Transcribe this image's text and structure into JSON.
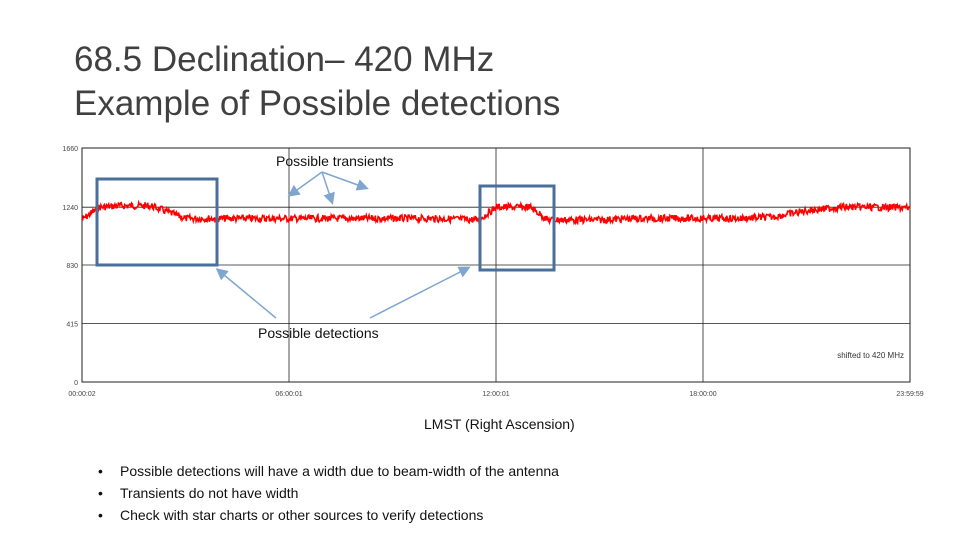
{
  "slide": {
    "title_line1": "68.5 Declination– 420 MHz",
    "title_line2": "Example of Possible detections",
    "callout_transients": "Possible transients",
    "callout_detections": "Possible detections",
    "x_caption": "LMST (Right Ascension)",
    "bullets": [
      "Possible detections will have a width due to beam-width of the antenna",
      "Transients do not have width",
      "Check with star charts or other sources to verify detections"
    ],
    "colors": {
      "trace": "#ff0000",
      "box": "#4a6f9a",
      "arrow": "#7fa6cf",
      "grid": "#222222"
    }
  },
  "chart_data": {
    "type": "line",
    "series": [
      {
        "x": [
          "00:00:02",
          "00:30:00",
          "00:50:00",
          "01:00:00",
          "02:00:00",
          "03:00:00",
          "04:00:00",
          "05:00:00",
          "06:00:00",
          "07:00:00",
          "08:00:00",
          "09:00:00",
          "10:00:00",
          "11:00:00",
          "11:30:00",
          "12:00:00",
          "13:00:00",
          "13:30:00",
          "14:00:00",
          "15:00:00",
          "16:00:00",
          "17:00:00",
          "18:00:00",
          "19:00:00",
          "20:00:00",
          "21:00:00",
          "22:00:00",
          "23:00:00",
          "23:59:59"
        ],
        "values": [
          1150,
          1240,
          1245,
          1250,
          1250,
          1160,
          1160,
          1160,
          1160,
          1160,
          1160,
          1160,
          1160,
          1155,
          1150,
          1240,
          1240,
          1150,
          1150,
          1150,
          1160,
          1160,
          1160,
          1160,
          1170,
          1215,
          1240,
          1240,
          1235
        ]
      }
    ],
    "x_ticks": [
      "00:00:02",
      "06:00:01",
      "12:00:01",
      "18:00:00",
      "23:59:59"
    ],
    "y_ticks": [
      "1660",
      "1240",
      "830",
      "415",
      "0"
    ],
    "ylim": [
      0,
      1660
    ],
    "annotation": "shifted to 420 MHz",
    "grid": true
  }
}
